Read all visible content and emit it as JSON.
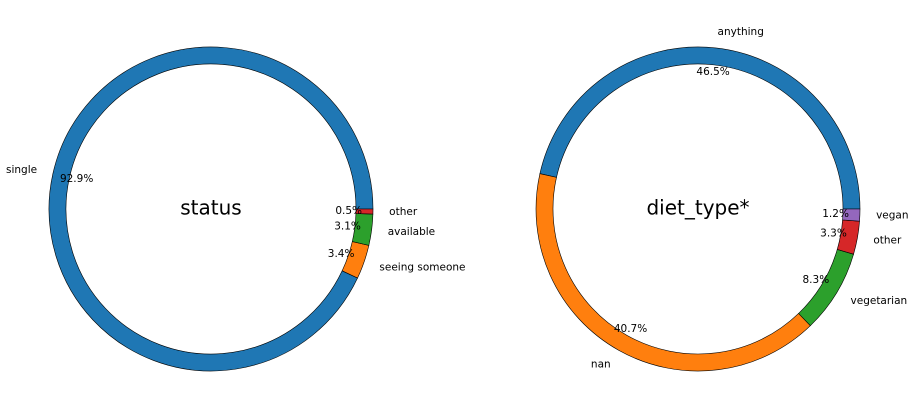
{
  "chart_data": [
    {
      "type": "pie",
      "variant": "donut",
      "title": "status",
      "start_angle_deg": 0,
      "direction": "counterclockwise",
      "slices": [
        {
          "label": "single",
          "value": 92.9,
          "pct_label": "92.9%",
          "color": "#1f77b4"
        },
        {
          "label": "seeing someone",
          "value": 3.4,
          "pct_label": "3.4%",
          "color": "#ff7f0e"
        },
        {
          "label": "available",
          "value": 3.1,
          "pct_label": "3.1%",
          "color": "#2ca02c"
        },
        {
          "label": "other",
          "value": 0.5,
          "pct_label": "0.5%",
          "color": "#d62728"
        }
      ]
    },
    {
      "type": "pie",
      "variant": "donut",
      "title": "diet_type*",
      "start_angle_deg": 0,
      "direction": "counterclockwise",
      "slices": [
        {
          "label": "anything",
          "value": 46.5,
          "pct_label": "46.5%",
          "color": "#1f77b4"
        },
        {
          "label": "nan",
          "value": 40.7,
          "pct_label": "40.7%",
          "color": "#ff7f0e"
        },
        {
          "label": "vegetarian",
          "value": 8.3,
          "pct_label": "8.3%",
          "color": "#2ca02c"
        },
        {
          "label": "other",
          "value": 3.3,
          "pct_label": "3.3%",
          "color": "#d62728"
        },
        {
          "label": "vegan",
          "value": 1.2,
          "pct_label": "1.2%",
          "color": "#9467bd"
        }
      ]
    }
  ]
}
